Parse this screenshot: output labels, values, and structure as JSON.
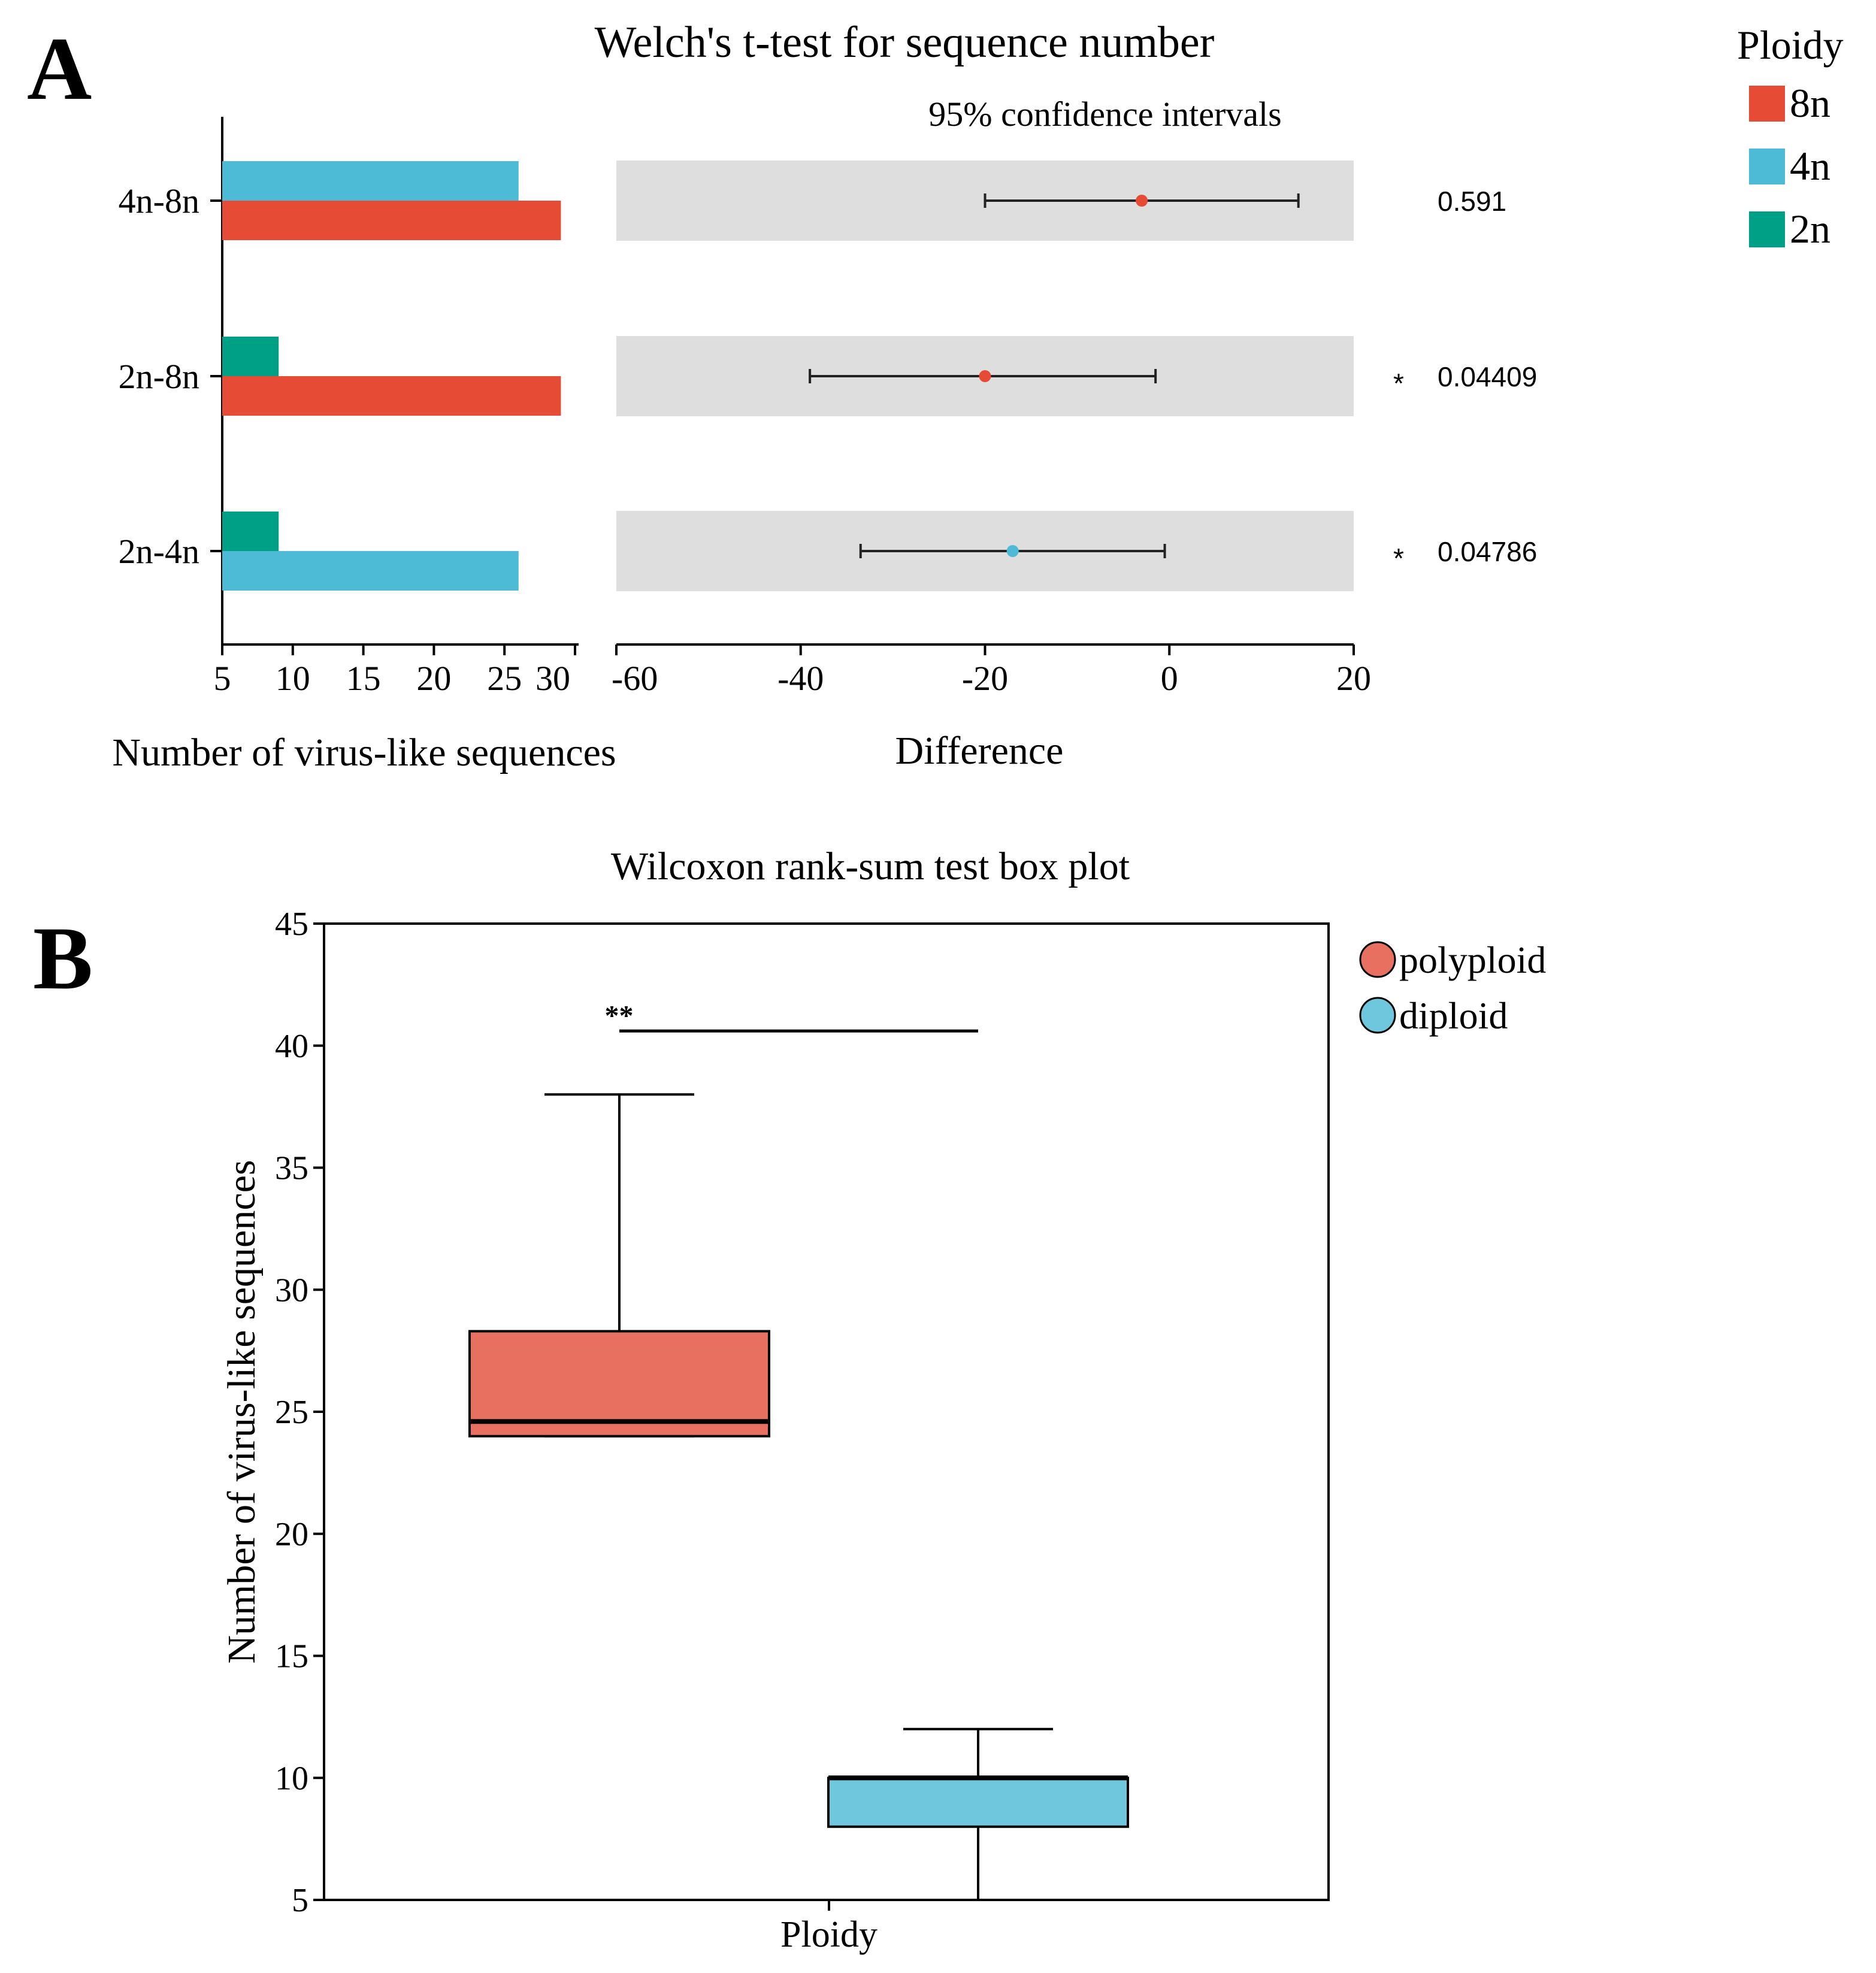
{
  "colors": {
    "c8n": "#e64b35",
    "c4n": "#4dbbd5",
    "c2n": "#00a087",
    "ci_band": "#dedede",
    "polyploid": "#e87060",
    "diploid": "#6ec7dc",
    "axis": "#000000"
  },
  "panel_a": {
    "letter": "A",
    "title": "Welch's t-test for sequence number",
    "ci_label": "95% confidence intervals",
    "legend": {
      "title": "Ploidy",
      "items": [
        {
          "label": "8n",
          "color_key": "c8n"
        },
        {
          "label": "4n",
          "color_key": "c4n"
        },
        {
          "label": "2n",
          "color_key": "c2n"
        }
      ]
    }
  },
  "panel_b": {
    "letter": "B",
    "title": "Wilcoxon rank-sum test box plot",
    "legend": [
      {
        "label": "polyploid",
        "color_key": "polyploid"
      },
      {
        "label": "diploid",
        "color_key": "diploid"
      }
    ]
  },
  "chart_data": [
    {
      "type": "bar",
      "orientation": "horizontal",
      "title": "Welch's t-test for sequence number",
      "xlabel": "Number of virus-like sequences",
      "ylabel": "",
      "xlim": [
        5,
        30
      ],
      "xticks": [
        5,
        10,
        15,
        20,
        25,
        30
      ],
      "xtick_labels": [
        "5",
        "10",
        "15",
        "20",
        "25",
        "30"
      ],
      "categories": [
        "4n-8n",
        "2n-8n",
        "2n-4n"
      ],
      "groups": [
        {
          "category": "4n-8n",
          "bars": [
            {
              "series": "4n",
              "value": 26
            },
            {
              "series": "8n",
              "value": 29
            }
          ]
        },
        {
          "category": "2n-8n",
          "bars": [
            {
              "series": "2n",
              "value": 9
            },
            {
              "series": "8n",
              "value": 29
            }
          ]
        },
        {
          "category": "2n-4n",
          "bars": [
            {
              "series": "2n",
              "value": 9
            },
            {
              "series": "4n",
              "value": 26
            }
          ]
        }
      ]
    },
    {
      "type": "errorbar",
      "title": "95% confidence intervals",
      "xlabel": "Difference",
      "xlim": [
        -60,
        20
      ],
      "xticks": [
        -60,
        -40,
        -20,
        0,
        20
      ],
      "xtick_labels": [
        "-60",
        "-40",
        "-20",
        "0",
        "20"
      ],
      "rows": [
        {
          "category": "4n-8n",
          "estimate": -3,
          "lower": -20,
          "upper": 14,
          "color_key": "c8n",
          "star": "",
          "p_value": "0.591"
        },
        {
          "category": "2n-8n",
          "estimate": -20,
          "lower": -39,
          "upper": -1.5,
          "color_key": "c8n",
          "star": "*",
          "p_value": "0.04409"
        },
        {
          "category": "2n-4n",
          "estimate": -17,
          "lower": -33.5,
          "upper": -0.5,
          "color_key": "c4n",
          "star": "*",
          "p_value": "0.04786"
        }
      ]
    },
    {
      "type": "box",
      "title": "Wilcoxon rank-sum test box plot",
      "xlabel": "Ploidy",
      "ylabel": "Number of virus-like sequences",
      "ylim": [
        5,
        45
      ],
      "yticks": [
        5,
        10,
        15,
        20,
        25,
        30,
        35,
        40,
        45
      ],
      "ytick_labels": [
        "5",
        "10",
        "15",
        "20",
        "25",
        "30",
        "35",
        "40",
        "45"
      ],
      "boxes": [
        {
          "group": "polyploid",
          "min": 24,
          "q1": 24,
          "median": 24.6,
          "q3": 28.3,
          "max": 38,
          "color_key": "polyploid"
        },
        {
          "group": "diploid",
          "min": 5,
          "q1": 8,
          "median": 10,
          "q3": 10,
          "max": 12,
          "color_key": "diploid"
        }
      ],
      "significance": {
        "label": "**",
        "level": 40.6
      }
    }
  ]
}
